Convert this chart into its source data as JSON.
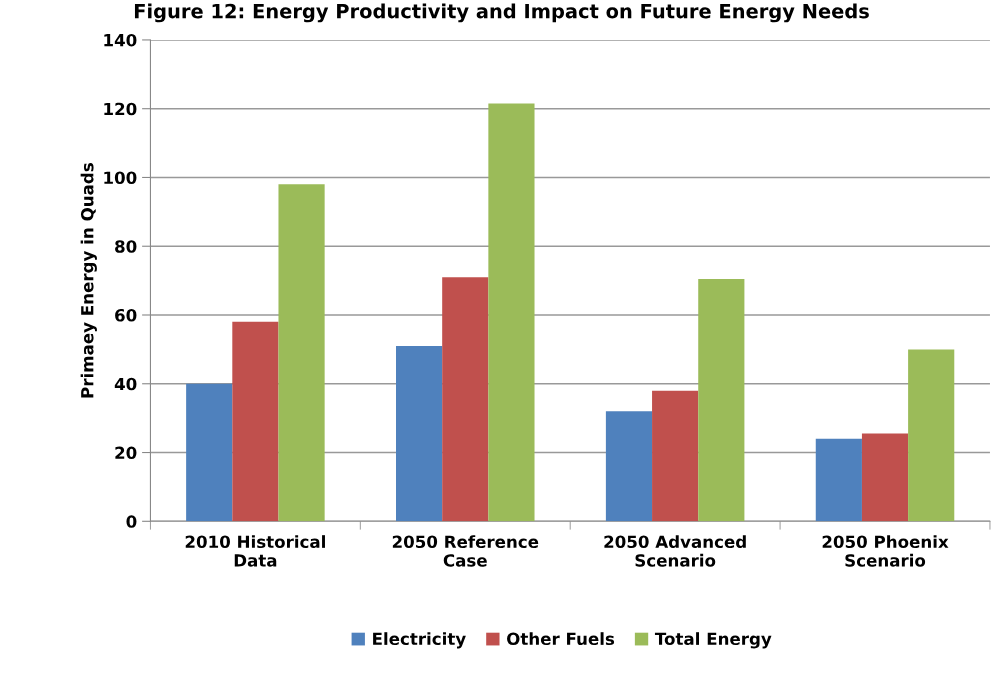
{
  "chart_data": {
    "type": "bar",
    "title": "Figure 12: Energy Productivity and Impact on Future Energy Needs",
    "ylabel": "Primaey Energy in Quads",
    "categories": [
      "2010 Historical\nData",
      "2050 Reference\nCase",
      "2050 Advanced\nScenario",
      "2050 Phoenix\nScenario"
    ],
    "series": [
      {
        "name": "Electricity",
        "color": "#4f81bd",
        "values": [
          40,
          51,
          32,
          24
        ]
      },
      {
        "name": "Other Fuels",
        "color": "#c0504d",
        "values": [
          58,
          71,
          38,
          25.5
        ]
      },
      {
        "name": "Total Energy",
        "color": "#9bbb59",
        "values": [
          98,
          121.5,
          70.5,
          50
        ]
      }
    ],
    "ylim": [
      0,
      140
    ],
    "yticks": [
      0,
      20,
      40,
      60,
      80,
      100,
      120,
      140
    ],
    "grid": "y",
    "legend": "bottom"
  }
}
